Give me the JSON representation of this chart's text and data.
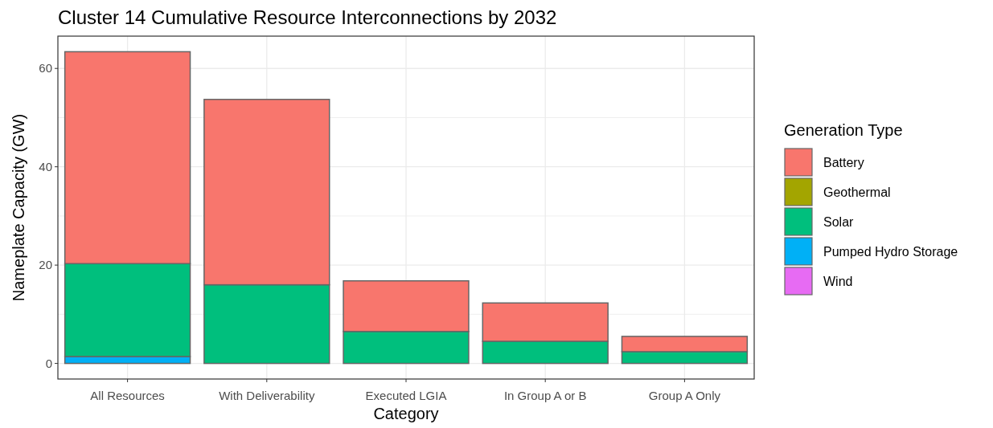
{
  "chart_data": {
    "type": "bar",
    "title": "Cluster 14 Cumulative Resource Interconnections by 2032",
    "xlabel": "Category",
    "ylabel": "Nameplate Capacity (GW)",
    "legend_title": "Generation Type",
    "categories": [
      "All Resources",
      "With Deliverability",
      "Executed LGIA",
      "In Group A or B",
      "Group A Only"
    ],
    "stacked": true,
    "series": [
      {
        "name": "Wind",
        "color": "#e76bf3",
        "values": [
          0,
          0,
          0,
          0,
          0
        ]
      },
      {
        "name": "Pumped Hydro Storage",
        "color": "#00b0f6",
        "values": [
          1.4,
          0,
          0,
          0,
          0
        ]
      },
      {
        "name": "Solar",
        "color": "#00bf7d",
        "values": [
          18.9,
          16.0,
          6.5,
          4.5,
          2.4
        ]
      },
      {
        "name": "Geothermal",
        "color": "#a3a500",
        "values": [
          0,
          0,
          0,
          0,
          0
        ]
      },
      {
        "name": "Battery",
        "color": "#f8766d",
        "values": [
          43.1,
          37.7,
          10.3,
          7.8,
          3.1
        ]
      }
    ],
    "ylim": [
      -3.17,
      66.57
    ],
    "yticks": [
      0,
      {
        "value": 10,
        "label": null
      },
      20,
      {
        "value": 30,
        "label": null
      },
      40,
      {
        "value": 50,
        "label": null
      },
      60
    ],
    "grid": true,
    "legend": "right"
  }
}
